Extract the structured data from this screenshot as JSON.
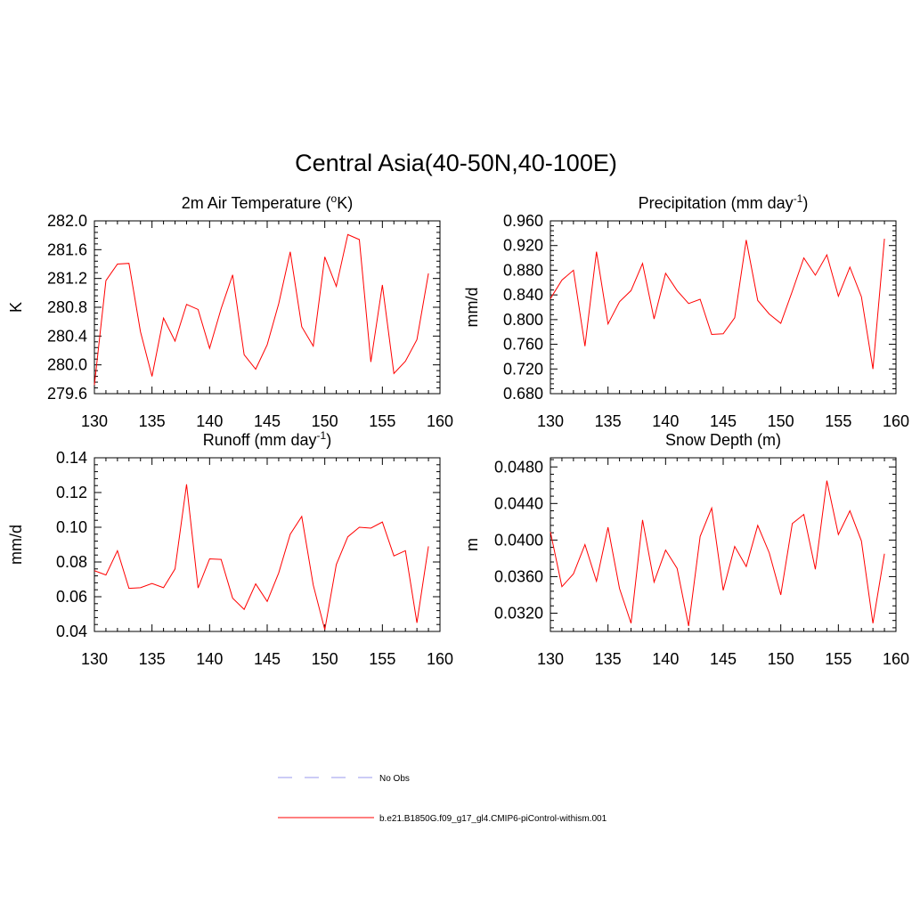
{
  "title": "Central Asia(40-50N,40-100E)",
  "legend": [
    {
      "label": "No Obs",
      "color": "#9999ee",
      "style": "dashed"
    },
    {
      "label": "b.e21.B1850G.f09_g17_gl4.CMIP6-piControl-withism.001",
      "color": "#ff0000",
      "style": "solid"
    }
  ],
  "chart_data": [
    {
      "type": "line",
      "title": "2m Air Temperature (",
      "title_sup": "o",
      "title_tail": "K)",
      "xlabel": "",
      "ylabel": "K",
      "xlim": [
        130,
        160
      ],
      "ylim": [
        279.6,
        282.0
      ],
      "xticks": [
        "130",
        "135",
        "140",
        "145",
        "150",
        "155",
        "160"
      ],
      "yticks": [
        "279.6",
        "280.0",
        "280.4",
        "280.8",
        "281.2",
        "281.6",
        "282.0"
      ],
      "x": [
        130,
        131,
        132,
        133,
        134,
        135,
        136,
        137,
        138,
        139,
        140,
        141,
        142,
        143,
        144,
        145,
        146,
        147,
        148,
        149,
        150,
        151,
        152,
        153,
        154,
        155,
        156,
        157,
        158,
        159
      ],
      "series": [
        {
          "color": "#ff0000",
          "values": [
            279.72,
            281.17,
            281.4,
            281.41,
            280.46,
            279.84,
            280.65,
            280.33,
            280.84,
            280.77,
            280.23,
            280.78,
            281.25,
            280.14,
            279.94,
            280.28,
            280.85,
            281.57,
            280.53,
            280.26,
            281.5,
            281.09,
            281.81,
            281.74,
            280.04,
            281.11,
            279.88,
            280.05,
            280.35,
            281.27
          ]
        }
      ]
    },
    {
      "type": "line",
      "title": "Precipitation (mm day",
      "title_sup": "-1",
      "title_tail": ")",
      "xlabel": "",
      "ylabel": "mm/d",
      "xlim": [
        130,
        160
      ],
      "ylim": [
        0.68,
        0.96
      ],
      "xticks": [
        "130",
        "135",
        "140",
        "145",
        "150",
        "155",
        "160"
      ],
      "yticks": [
        "0.680",
        "0.720",
        "0.760",
        "0.800",
        "0.840",
        "0.880",
        "0.920",
        "0.960"
      ],
      "x": [
        130,
        131,
        132,
        133,
        134,
        135,
        136,
        137,
        138,
        139,
        140,
        141,
        142,
        143,
        144,
        145,
        146,
        147,
        148,
        149,
        150,
        151,
        152,
        153,
        154,
        155,
        156,
        157,
        158,
        159
      ],
      "series": [
        {
          "color": "#ff0000",
          "values": [
            0.834,
            0.864,
            0.88,
            0.757,
            0.91,
            0.793,
            0.829,
            0.847,
            0.891,
            0.801,
            0.875,
            0.847,
            0.826,
            0.833,
            0.776,
            0.777,
            0.803,
            0.929,
            0.831,
            0.809,
            0.794,
            0.846,
            0.9,
            0.872,
            0.905,
            0.838,
            0.885,
            0.837,
            0.72,
            0.931
          ]
        }
      ]
    },
    {
      "type": "line",
      "title": "Runoff (mm day",
      "title_sup": "-1",
      "title_tail": ")",
      "xlabel": "",
      "ylabel": "mm/d",
      "xlim": [
        130,
        160
      ],
      "ylim": [
        0.04,
        0.14
      ],
      "xticks": [
        "130",
        "135",
        "140",
        "145",
        "150",
        "155",
        "160"
      ],
      "yticks": [
        "0.04",
        "0.06",
        "0.08",
        "0.10",
        "0.12",
        "0.14"
      ],
      "x": [
        130,
        131,
        132,
        133,
        134,
        135,
        136,
        137,
        138,
        139,
        140,
        141,
        142,
        143,
        144,
        145,
        146,
        147,
        148,
        149,
        150,
        151,
        152,
        153,
        154,
        155,
        156,
        157,
        158,
        159
      ],
      "series": [
        {
          "color": "#ff0000",
          "values": [
            0.075,
            0.0725,
            0.0865,
            0.0648,
            0.0652,
            0.0676,
            0.0652,
            0.076,
            0.1247,
            0.065,
            0.0818,
            0.0815,
            0.0592,
            0.0527,
            0.0674,
            0.0573,
            0.0737,
            0.096,
            0.1062,
            0.0667,
            0.041,
            0.0785,
            0.0945,
            0.1,
            0.0995,
            0.103,
            0.0835,
            0.0865,
            0.045,
            0.089
          ]
        }
      ]
    },
    {
      "type": "line",
      "title": "Snow Depth (m)",
      "title_sup": "",
      "title_tail": "",
      "xlabel": "",
      "ylabel": "m",
      "xlim": [
        130,
        160
      ],
      "ylim": [
        0.03,
        0.049
      ],
      "xticks": [
        "130",
        "135",
        "140",
        "145",
        "150",
        "155",
        "160"
      ],
      "yticks": [
        "0.0320",
        "0.0360",
        "0.0400",
        "0.0440",
        "0.0480"
      ],
      "x": [
        130,
        131,
        132,
        133,
        134,
        135,
        136,
        137,
        138,
        139,
        140,
        141,
        142,
        143,
        144,
        145,
        146,
        147,
        148,
        149,
        150,
        151,
        152,
        153,
        154,
        155,
        156,
        157,
        158,
        159
      ],
      "series": [
        {
          "color": "#ff0000",
          "values": [
            0.0409,
            0.0349,
            0.0363,
            0.0395,
            0.0355,
            0.0414,
            0.0347,
            0.0309,
            0.0422,
            0.0354,
            0.0389,
            0.0369,
            0.0306,
            0.0404,
            0.0435,
            0.0345,
            0.0393,
            0.0371,
            0.0416,
            0.0386,
            0.034,
            0.0418,
            0.0428,
            0.0368,
            0.0465,
            0.0406,
            0.0432,
            0.0399,
            0.0309,
            0.0385
          ]
        }
      ]
    }
  ]
}
